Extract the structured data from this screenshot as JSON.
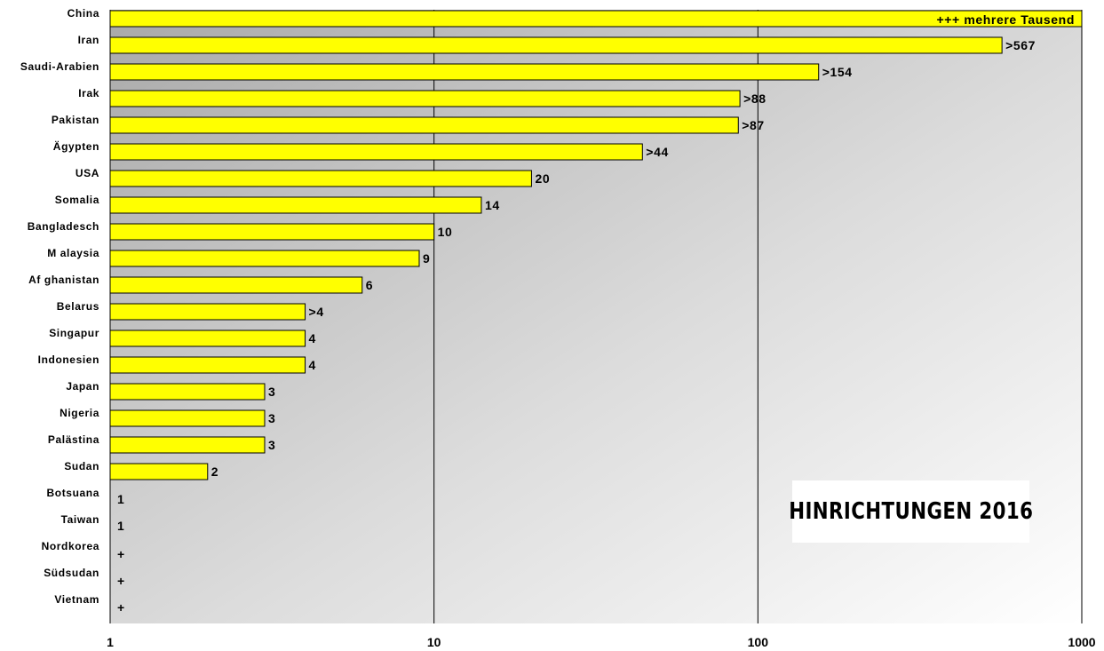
{
  "chart_data": {
    "type": "bar",
    "orientation": "horizontal",
    "title": "HINRICHTUNGEN 2016",
    "xscale": "log",
    "xlim": [
      1,
      1000
    ],
    "xticks": [
      "1",
      "10",
      "100",
      "1000"
    ],
    "grid": true,
    "colors": {
      "bar": "#ffff00",
      "bar_border": "#000000"
    },
    "categories": [
      "China",
      "Iran",
      "Saudi-Arabien",
      "Irak",
      "Pakistan",
      "Ägypten",
      "USA",
      "Somalia",
      "Bangladesch",
      "M alaysia",
      "Af ghanistan",
      "Belarus",
      "Singapur",
      "Indonesien",
      "Japan",
      "Nigeria",
      "Palästina",
      "Sudan",
      "Botsuana",
      "Taiwan",
      "Nordkorea",
      "Südsudan",
      "Vietnam"
    ],
    "values": [
      1000,
      567,
      154,
      88,
      87,
      44,
      20,
      14,
      10,
      9,
      6,
      4,
      4,
      4,
      3,
      3,
      3,
      2,
      1,
      1,
      1,
      1,
      1
    ],
    "labels": [
      "+++ mehrere Tausend",
      ">567",
      ">154",
      ">88",
      ">87",
      ">44",
      "20",
      "14",
      "10",
      "9",
      "6",
      ">4",
      "4",
      "4",
      "3",
      "3",
      "3",
      "2",
      "1",
      "1",
      "+",
      "+",
      "+"
    ]
  }
}
